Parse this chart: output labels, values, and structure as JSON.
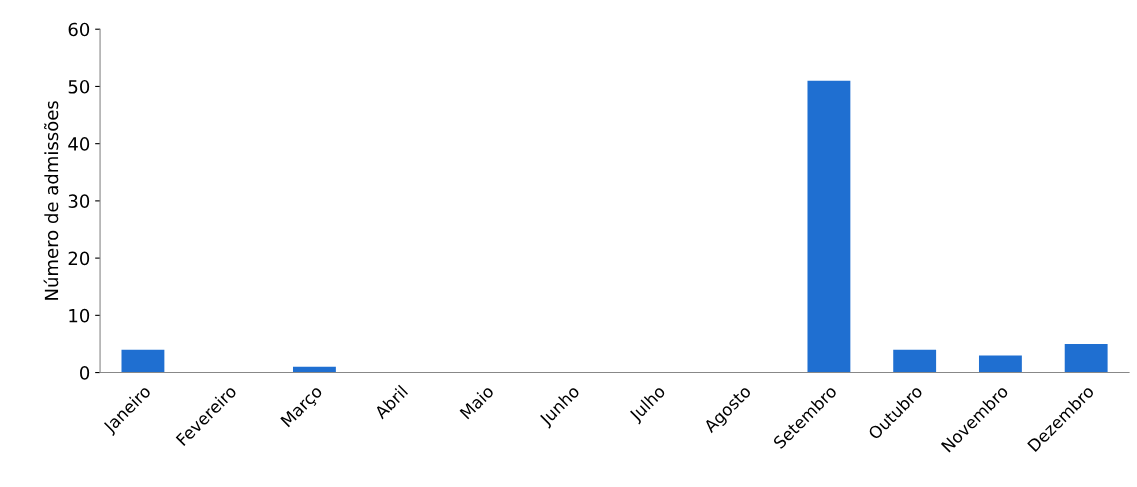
{
  "chart_data": {
    "type": "bar",
    "ylabel": "Número de admissões",
    "categories": [
      "Janeiro",
      "Fevereiro",
      "Março",
      "Abril",
      "Maio",
      "Junho",
      "Julho",
      "Agosto",
      "Setembro",
      "Outubro",
      "Novembro",
      "Dezembro"
    ],
    "values": [
      4,
      0,
      1,
      0,
      0,
      0,
      0,
      0,
      51,
      4,
      3,
      5
    ],
    "color": "#1f6fd1",
    "ylim": [
      0,
      60
    ],
    "yticks": [
      0,
      10,
      20,
      30,
      40,
      50,
      60
    ],
    "grid": false
  }
}
